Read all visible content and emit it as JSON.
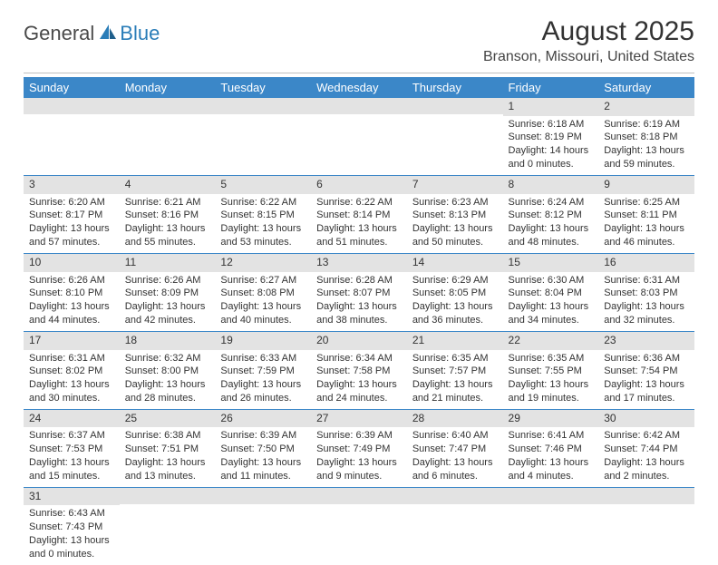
{
  "logo": {
    "dark": "General",
    "blue": "Blue"
  },
  "title": "August 2025",
  "location": "Branson, Missouri, United States",
  "colors": {
    "header_bg": "#3b87c8",
    "header_fg": "#ffffff",
    "daynum_bg": "#e3e3e3",
    "row_divider": "#3b87c8",
    "text": "#333333"
  },
  "day_headers": [
    "Sunday",
    "Monday",
    "Tuesday",
    "Wednesday",
    "Thursday",
    "Friday",
    "Saturday"
  ],
  "weeks": [
    [
      {
        "n": "",
        "sr": "",
        "ss": "",
        "dl": ""
      },
      {
        "n": "",
        "sr": "",
        "ss": "",
        "dl": ""
      },
      {
        "n": "",
        "sr": "",
        "ss": "",
        "dl": ""
      },
      {
        "n": "",
        "sr": "",
        "ss": "",
        "dl": ""
      },
      {
        "n": "",
        "sr": "",
        "ss": "",
        "dl": ""
      },
      {
        "n": "1",
        "sr": "Sunrise: 6:18 AM",
        "ss": "Sunset: 8:19 PM",
        "dl": "Daylight: 14 hours and 0 minutes."
      },
      {
        "n": "2",
        "sr": "Sunrise: 6:19 AM",
        "ss": "Sunset: 8:18 PM",
        "dl": "Daylight: 13 hours and 59 minutes."
      }
    ],
    [
      {
        "n": "3",
        "sr": "Sunrise: 6:20 AM",
        "ss": "Sunset: 8:17 PM",
        "dl": "Daylight: 13 hours and 57 minutes."
      },
      {
        "n": "4",
        "sr": "Sunrise: 6:21 AM",
        "ss": "Sunset: 8:16 PM",
        "dl": "Daylight: 13 hours and 55 minutes."
      },
      {
        "n": "5",
        "sr": "Sunrise: 6:22 AM",
        "ss": "Sunset: 8:15 PM",
        "dl": "Daylight: 13 hours and 53 minutes."
      },
      {
        "n": "6",
        "sr": "Sunrise: 6:22 AM",
        "ss": "Sunset: 8:14 PM",
        "dl": "Daylight: 13 hours and 51 minutes."
      },
      {
        "n": "7",
        "sr": "Sunrise: 6:23 AM",
        "ss": "Sunset: 8:13 PM",
        "dl": "Daylight: 13 hours and 50 minutes."
      },
      {
        "n": "8",
        "sr": "Sunrise: 6:24 AM",
        "ss": "Sunset: 8:12 PM",
        "dl": "Daylight: 13 hours and 48 minutes."
      },
      {
        "n": "9",
        "sr": "Sunrise: 6:25 AM",
        "ss": "Sunset: 8:11 PM",
        "dl": "Daylight: 13 hours and 46 minutes."
      }
    ],
    [
      {
        "n": "10",
        "sr": "Sunrise: 6:26 AM",
        "ss": "Sunset: 8:10 PM",
        "dl": "Daylight: 13 hours and 44 minutes."
      },
      {
        "n": "11",
        "sr": "Sunrise: 6:26 AM",
        "ss": "Sunset: 8:09 PM",
        "dl": "Daylight: 13 hours and 42 minutes."
      },
      {
        "n": "12",
        "sr": "Sunrise: 6:27 AM",
        "ss": "Sunset: 8:08 PM",
        "dl": "Daylight: 13 hours and 40 minutes."
      },
      {
        "n": "13",
        "sr": "Sunrise: 6:28 AM",
        "ss": "Sunset: 8:07 PM",
        "dl": "Daylight: 13 hours and 38 minutes."
      },
      {
        "n": "14",
        "sr": "Sunrise: 6:29 AM",
        "ss": "Sunset: 8:05 PM",
        "dl": "Daylight: 13 hours and 36 minutes."
      },
      {
        "n": "15",
        "sr": "Sunrise: 6:30 AM",
        "ss": "Sunset: 8:04 PM",
        "dl": "Daylight: 13 hours and 34 minutes."
      },
      {
        "n": "16",
        "sr": "Sunrise: 6:31 AM",
        "ss": "Sunset: 8:03 PM",
        "dl": "Daylight: 13 hours and 32 minutes."
      }
    ],
    [
      {
        "n": "17",
        "sr": "Sunrise: 6:31 AM",
        "ss": "Sunset: 8:02 PM",
        "dl": "Daylight: 13 hours and 30 minutes."
      },
      {
        "n": "18",
        "sr": "Sunrise: 6:32 AM",
        "ss": "Sunset: 8:00 PM",
        "dl": "Daylight: 13 hours and 28 minutes."
      },
      {
        "n": "19",
        "sr": "Sunrise: 6:33 AM",
        "ss": "Sunset: 7:59 PM",
        "dl": "Daylight: 13 hours and 26 minutes."
      },
      {
        "n": "20",
        "sr": "Sunrise: 6:34 AM",
        "ss": "Sunset: 7:58 PM",
        "dl": "Daylight: 13 hours and 24 minutes."
      },
      {
        "n": "21",
        "sr": "Sunrise: 6:35 AM",
        "ss": "Sunset: 7:57 PM",
        "dl": "Daylight: 13 hours and 21 minutes."
      },
      {
        "n": "22",
        "sr": "Sunrise: 6:35 AM",
        "ss": "Sunset: 7:55 PM",
        "dl": "Daylight: 13 hours and 19 minutes."
      },
      {
        "n": "23",
        "sr": "Sunrise: 6:36 AM",
        "ss": "Sunset: 7:54 PM",
        "dl": "Daylight: 13 hours and 17 minutes."
      }
    ],
    [
      {
        "n": "24",
        "sr": "Sunrise: 6:37 AM",
        "ss": "Sunset: 7:53 PM",
        "dl": "Daylight: 13 hours and 15 minutes."
      },
      {
        "n": "25",
        "sr": "Sunrise: 6:38 AM",
        "ss": "Sunset: 7:51 PM",
        "dl": "Daylight: 13 hours and 13 minutes."
      },
      {
        "n": "26",
        "sr": "Sunrise: 6:39 AM",
        "ss": "Sunset: 7:50 PM",
        "dl": "Daylight: 13 hours and 11 minutes."
      },
      {
        "n": "27",
        "sr": "Sunrise: 6:39 AM",
        "ss": "Sunset: 7:49 PM",
        "dl": "Daylight: 13 hours and 9 minutes."
      },
      {
        "n": "28",
        "sr": "Sunrise: 6:40 AM",
        "ss": "Sunset: 7:47 PM",
        "dl": "Daylight: 13 hours and 6 minutes."
      },
      {
        "n": "29",
        "sr": "Sunrise: 6:41 AM",
        "ss": "Sunset: 7:46 PM",
        "dl": "Daylight: 13 hours and 4 minutes."
      },
      {
        "n": "30",
        "sr": "Sunrise: 6:42 AM",
        "ss": "Sunset: 7:44 PM",
        "dl": "Daylight: 13 hours and 2 minutes."
      }
    ],
    [
      {
        "n": "31",
        "sr": "Sunrise: 6:43 AM",
        "ss": "Sunset: 7:43 PM",
        "dl": "Daylight: 13 hours and 0 minutes."
      },
      {
        "n": "",
        "sr": "",
        "ss": "",
        "dl": ""
      },
      {
        "n": "",
        "sr": "",
        "ss": "",
        "dl": ""
      },
      {
        "n": "",
        "sr": "",
        "ss": "",
        "dl": ""
      },
      {
        "n": "",
        "sr": "",
        "ss": "",
        "dl": ""
      },
      {
        "n": "",
        "sr": "",
        "ss": "",
        "dl": ""
      },
      {
        "n": "",
        "sr": "",
        "ss": "",
        "dl": ""
      }
    ]
  ]
}
